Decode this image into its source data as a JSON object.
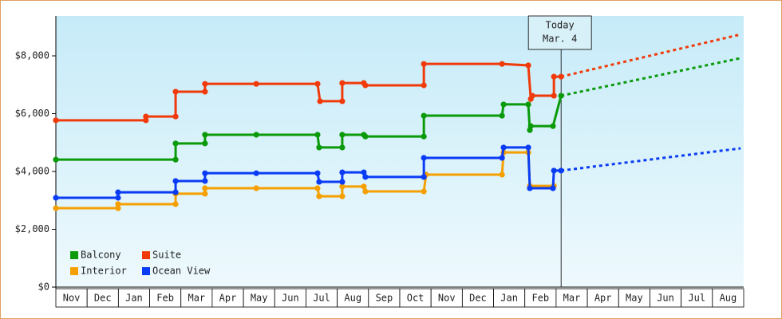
{
  "chart_data": {
    "type": "line",
    "x_categories": [
      "Nov",
      "Dec",
      "Jan",
      "Feb",
      "Mar",
      "Apr",
      "May",
      "Jun",
      "Jul",
      "Aug",
      "Sep",
      "Oct",
      "Nov",
      "Dec",
      "Jan",
      "Feb",
      "Mar",
      "Apr",
      "May",
      "Jun",
      "Jul",
      "Aug"
    ],
    "xlim": [
      0,
      22
    ],
    "ylim": [
      0,
      9380
    ],
    "yticks": [
      {
        "value": 0,
        "label": "$0"
      },
      {
        "value": 2000,
        "label": "$2,000"
      },
      {
        "value": 4000,
        "label": "$4,000"
      },
      {
        "value": 6000,
        "label": "$6,000"
      },
      {
        "value": 8000,
        "label": "$8,000"
      }
    ],
    "legend": "lower left",
    "annotation": {
      "x": 16.16,
      "lines": [
        "Today",
        "Mar. 4"
      ]
    },
    "series": [
      {
        "name": "Balcony",
        "color": "#0a9a0a",
        "x": [
          0,
          3.83,
          3.83,
          4.77,
          4.77,
          6.41,
          8.37,
          8.42,
          9.16,
          9.16,
          9.85,
          9.9,
          11.77,
          11.77,
          14.27,
          14.32,
          15.11,
          15.16,
          15.19,
          15.9,
          16.16
        ],
        "values": [
          4410,
          4410,
          4970,
          4970,
          5270,
          5270,
          5270,
          4830,
          4830,
          5270,
          5270,
          5210,
          5210,
          5930,
          5930,
          6320,
          6320,
          5430,
          5570,
          5570,
          6620
        ],
        "forecast_x": [
          16.16,
          21.9
        ],
        "forecast_values": [
          6620,
          7920
        ]
      },
      {
        "name": "Suite",
        "color": "#f03a0a",
        "x": [
          0,
          2.88,
          2.88,
          3.83,
          3.83,
          4.77,
          4.77,
          6.41,
          8.37,
          8.45,
          9.16,
          9.16,
          9.85,
          9.9,
          11.77,
          11.77,
          14.27,
          15.11,
          15.19,
          15.24,
          15.93,
          15.93,
          16.16
        ],
        "values": [
          5770,
          5770,
          5900,
          5900,
          6760,
          6760,
          7030,
          7030,
          7030,
          6430,
          6430,
          7060,
          7060,
          6980,
          6980,
          7720,
          7720,
          7670,
          6510,
          6620,
          6620,
          7280,
          7280
        ],
        "forecast_x": [
          16.16,
          21.9
        ],
        "forecast_values": [
          7280,
          8740
        ]
      },
      {
        "name": "Interior",
        "color": "#f5a000",
        "x": [
          0,
          1.99,
          1.99,
          3.83,
          3.83,
          4.77,
          4.77,
          6.41,
          8.37,
          8.42,
          9.16,
          9.16,
          9.85,
          9.9,
          11.77,
          11.84,
          14.27,
          14.32,
          15.11,
          15.16,
          15.93
        ],
        "values": [
          2730,
          2730,
          2870,
          2870,
          3230,
          3230,
          3420,
          3420,
          3420,
          3140,
          3140,
          3480,
          3480,
          3310,
          3310,
          3890,
          3890,
          4660,
          4660,
          3500,
          3500
        ]
      },
      {
        "name": "Ocean View",
        "color": "#0a3cf5",
        "x": [
          0,
          1.99,
          1.99,
          3.83,
          3.83,
          4.77,
          4.77,
          6.41,
          8.37,
          8.42,
          9.16,
          9.16,
          9.85,
          9.9,
          11.77,
          11.77,
          14.27,
          14.32,
          15.11,
          15.16,
          15.9,
          15.93,
          16.16
        ],
        "values": [
          3090,
          3090,
          3280,
          3280,
          3670,
          3670,
          3940,
          3940,
          3940,
          3640,
          3640,
          3970,
          3970,
          3810,
          3810,
          4470,
          4470,
          4830,
          4830,
          3420,
          3420,
          4030,
          4030
        ],
        "forecast_x": [
          16.16,
          21.9
        ],
        "forecast_values": [
          4030,
          4800
        ]
      }
    ]
  }
}
